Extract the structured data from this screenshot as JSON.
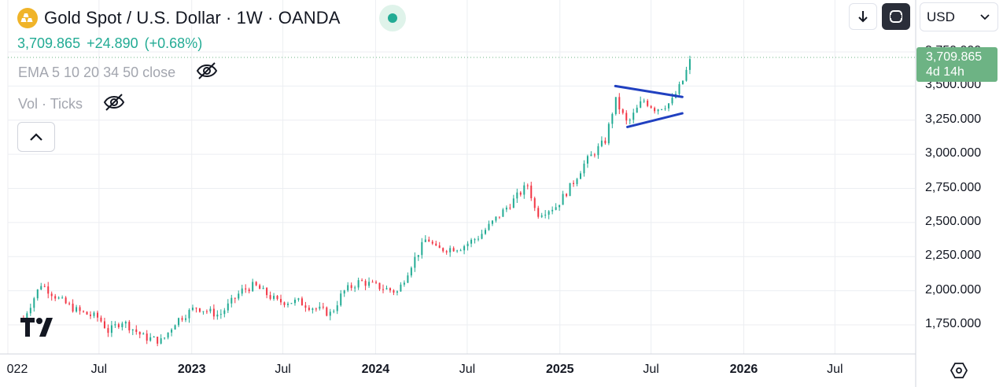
{
  "header": {
    "symbol_title": "Gold Spot / U.S. Dollar · 1W · OANDA",
    "last_price": "3,709.865",
    "change": "+24.890",
    "change_pct": "(+0.68%)",
    "up_color": "#22ab94",
    "down_color": "#f23645"
  },
  "indicators": [
    {
      "label": "EMA 5 10 20 34 50 close",
      "icon": "eye-off-icon"
    },
    {
      "label": "Vol · Ticks",
      "icon": "eye-off-icon"
    }
  ],
  "toolbar": {
    "currency": "USD",
    "down_icon": "arrow-down-icon",
    "square_icon": "rounded-square-icon",
    "collapse_icon": "chevron-up-icon"
  },
  "price_label": {
    "price": "3,709.865",
    "countdown": "4d 14h",
    "color": "#6db384"
  },
  "axes": {
    "y_ticks": [
      "3,750.000",
      "3,500.000",
      "3,250.000",
      "3,000.000",
      "2,750.000",
      "2,500.000",
      "2,250.000",
      "2,000.000",
      "1,750.000"
    ],
    "x_ticks": [
      {
        "label": "022",
        "bold": false
      },
      {
        "label": "Jul",
        "bold": false
      },
      {
        "label": "2023",
        "bold": true
      },
      {
        "label": "Jul",
        "bold": false
      },
      {
        "label": "2024",
        "bold": true
      },
      {
        "label": "Jul",
        "bold": false
      },
      {
        "label": "2025",
        "bold": true
      },
      {
        "label": "Jul",
        "bold": false
      },
      {
        "label": "2026",
        "bold": true
      },
      {
        "label": "Jul",
        "bold": false
      }
    ]
  },
  "chart_data": {
    "type": "line",
    "ylim": [
      1600,
      3800
    ],
    "y_ticks": [
      1750,
      2000,
      2250,
      2500,
      2750,
      3000,
      3250,
      3500,
      3750
    ],
    "x_range": [
      "2022-01-01",
      "2026-09-15"
    ],
    "series": [
      {
        "values": [
          [
            "2022-02-01",
            1800
          ],
          [
            "2022-03-08",
            2050
          ],
          [
            "2022-04-15",
            1930
          ],
          [
            "2022-05-20",
            1850
          ],
          [
            "2022-07-01",
            1800
          ],
          [
            "2022-07-20",
            1700
          ],
          [
            "2022-08-15",
            1780
          ],
          [
            "2022-09-28",
            1660
          ],
          [
            "2022-11-03",
            1630
          ],
          [
            "2022-12-01",
            1780
          ],
          [
            "2023-01-10",
            1880
          ],
          [
            "2023-02-25",
            1820
          ],
          [
            "2023-04-10",
            2000
          ],
          [
            "2023-05-05",
            2040
          ],
          [
            "2023-06-20",
            1920
          ],
          [
            "2023-08-01",
            1920
          ],
          [
            "2023-08-20",
            1890
          ],
          [
            "2023-10-05",
            1830
          ],
          [
            "2023-10-28",
            1990
          ],
          [
            "2023-12-01",
            2070
          ],
          [
            "2024-01-15",
            2020
          ],
          [
            "2024-02-14",
            1990
          ],
          [
            "2024-03-10",
            2180
          ],
          [
            "2024-04-12",
            2390
          ],
          [
            "2024-05-01",
            2300
          ],
          [
            "2024-06-20",
            2320
          ],
          [
            "2024-07-25",
            2400
          ],
          [
            "2024-08-20",
            2500
          ],
          [
            "2024-09-30",
            2660
          ],
          [
            "2024-10-30",
            2780
          ],
          [
            "2024-11-15",
            2560
          ],
          [
            "2024-12-25",
            2620
          ],
          [
            "2025-01-25",
            2780
          ],
          [
            "2025-02-20",
            2940
          ],
          [
            "2025-04-01",
            3100
          ],
          [
            "2025-04-21",
            3400
          ],
          [
            "2025-05-15",
            3220
          ],
          [
            "2025-06-15",
            3400
          ],
          [
            "2025-07-10",
            3330
          ],
          [
            "2025-08-10",
            3380
          ],
          [
            "2025-09-01",
            3530
          ],
          [
            "2025-09-19",
            3709.865
          ]
        ]
      }
    ],
    "trendlines": [
      {
        "from": [
          "2025-04-21",
          3500
        ],
        "to": [
          "2025-09-01",
          3420
        ]
      },
      {
        "from": [
          "2025-05-15",
          3200
        ],
        "to": [
          "2025-09-01",
          3300
        ]
      }
    ],
    "last_price": 3709.865
  }
}
